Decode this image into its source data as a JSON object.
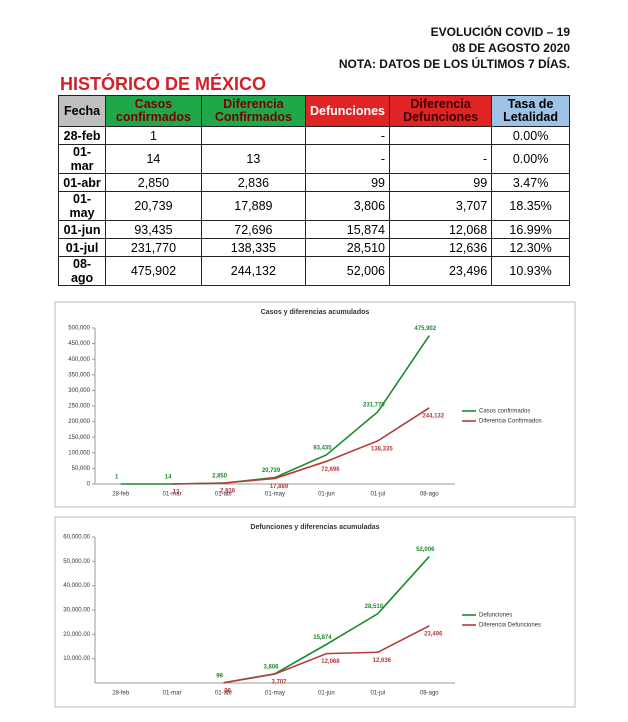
{
  "header": {
    "title": "EVOLUCIÓN COVID – 19",
    "date": "08 DE AGOSTO 2020",
    "note": "NOTA: DATOS DE LOS ÚLTIMOS 7 DÍAS.",
    "section": "HISTÓRICO DE MÉXICO"
  },
  "table": {
    "columns": [
      "Fecha",
      "Casos confirmados",
      "Diferencia Confirmados",
      "Defunciones",
      "Diferencia Defunciones",
      "Tasa de Letalidad"
    ],
    "rows": [
      [
        "28-feb",
        "1",
        "",
        "-",
        "",
        "0.00%"
      ],
      [
        "01-mar",
        "14",
        "13",
        "-",
        "-",
        "0.00%"
      ],
      [
        "01-abr",
        "2,850",
        "2,836",
        "99",
        "99",
        "3.47%"
      ],
      [
        "01-may",
        "20,739",
        "17,889",
        "3,806",
        "3,707",
        "18.35%"
      ],
      [
        "01-jun",
        "93,435",
        "72,696",
        "15,874",
        "12,068",
        "16.99%"
      ],
      [
        "01-jul",
        "231,770",
        "138,335",
        "28,510",
        "12,636",
        "12.30%"
      ],
      [
        "08-ago",
        "475,902",
        "244,132",
        "52,006",
        "23,496",
        "10.93%"
      ]
    ]
  },
  "chart_data": [
    {
      "type": "line",
      "title": "Casos y diferencias acumulados",
      "categories": [
        "28-feb",
        "01-mar",
        "01-abr",
        "01-may",
        "01-jun",
        "01-jul",
        "08-ago"
      ],
      "series": [
        {
          "name": "Casos confirmados",
          "color": "#1e8a2e",
          "values": [
            1,
            14,
            2850,
            20739,
            93435,
            231770,
            475902
          ],
          "value_labels": [
            "1",
            "14",
            "2,850",
            "20,739",
            "93,435",
            "231,770",
            "475,902"
          ]
        },
        {
          "name": "Diferencia Confirmados",
          "color": "#b83a3a",
          "values": [
            null,
            13,
            2836,
            17889,
            72696,
            138335,
            244132
          ],
          "value_labels": [
            null,
            "13",
            "2,836",
            "17,889",
            "72,696",
            "138,335",
            "244,132"
          ]
        }
      ],
      "ylim": [
        0,
        500000
      ],
      "yticks": [
        0,
        {
          "value": 50000,
          "label": "50,000"
        },
        {
          "value": 100000,
          "label": "100,000"
        },
        {
          "value": 150000,
          "label": "150,000"
        },
        {
          "value": 200000,
          "label": "200,000"
        },
        {
          "value": 250000,
          "label": "250,000"
        },
        {
          "value": 300000,
          "label": "300,000"
        },
        {
          "value": 350000,
          "label": "350,000"
        },
        {
          "value": 400000,
          "label": "400,000"
        },
        {
          "value": 450000,
          "label": "450,000"
        },
        {
          "value": 500000,
          "label": "500,000"
        }
      ],
      "legend": "right"
    },
    {
      "type": "line",
      "title": "Defunciones y diferencias acumuladas",
      "categories": [
        "28-feb",
        "01-mar",
        "01-abr",
        "01-may",
        "01-jun",
        "01-jul",
        "08-ago"
      ],
      "series": [
        {
          "name": "Defunciones",
          "color": "#1e8a2e",
          "values": [
            null,
            null,
            99,
            3806,
            15874,
            28510,
            52006
          ],
          "value_labels": [
            null,
            null,
            "99",
            "3,806",
            "15,874",
            "28,510",
            "52,006"
          ]
        },
        {
          "name": "Diferencia Defunciones",
          "color": "#b83a3a",
          "values": [
            null,
            null,
            99,
            3707,
            12068,
            12636,
            23496
          ],
          "value_labels": [
            null,
            null,
            "99",
            "3,707",
            "12,068",
            "12,636",
            "23,496"
          ]
        }
      ],
      "ylim": [
        0,
        60000
      ],
      "yticks": [
        {
          "value": 10000,
          "label": "10,000.00"
        },
        {
          "value": 20000,
          "label": "20,000.00"
        },
        {
          "value": 30000,
          "label": "30,000.00"
        },
        {
          "value": 40000,
          "label": "40,000.00"
        },
        {
          "value": 50000,
          "label": "50,000.00"
        },
        {
          "value": 60000,
          "label": "60,000.00"
        }
      ],
      "legend": "right"
    }
  ]
}
